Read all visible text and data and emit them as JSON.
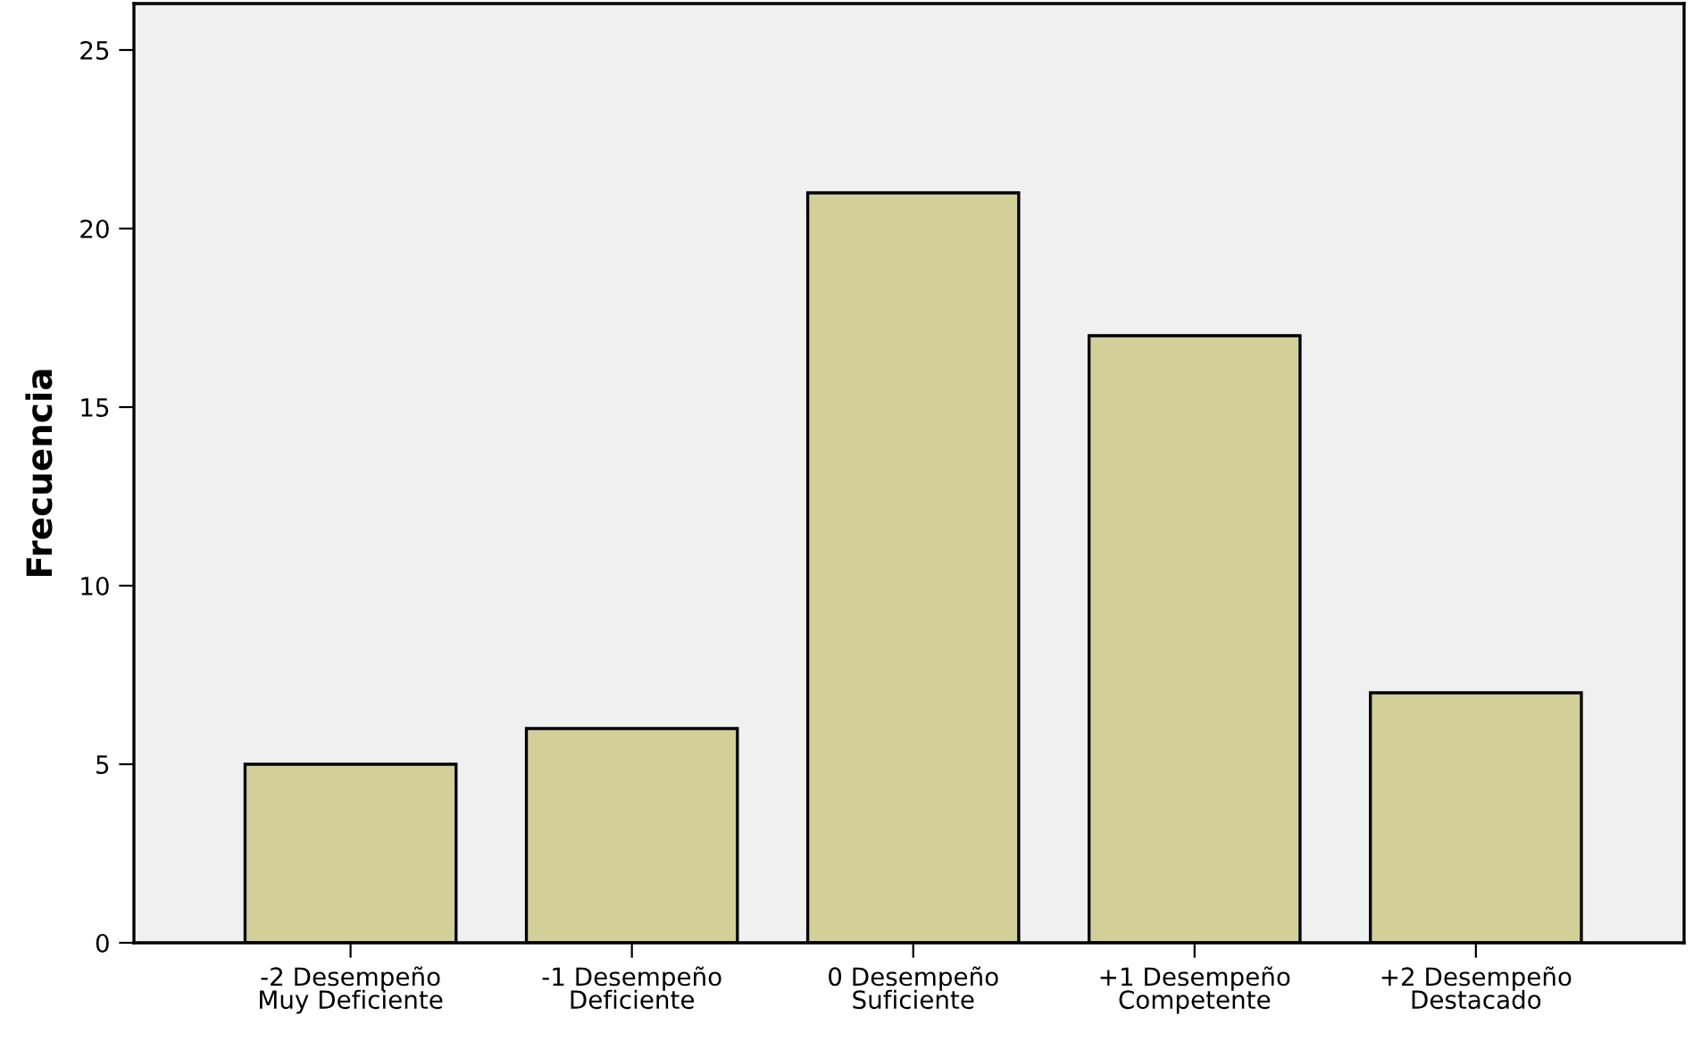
{
  "chart_data": {
    "type": "bar",
    "ylabel": "Frecuencia",
    "categories": [
      "-2 Desempeño\nMuy Deficiente",
      "-1 Desempeño\nDeficiente",
      "0 Desempeño\nSuficiente",
      "+1 Desempeño\nCompetente",
      "+2 Desempeño\nDestacado"
    ],
    "values": [
      5,
      6,
      21,
      17,
      7
    ],
    "color": "#d3cf98",
    "ylim": [
      0,
      26.3
    ],
    "yticks": [
      0,
      5,
      10,
      15,
      20,
      25
    ],
    "grid": false,
    "legend": false
  }
}
